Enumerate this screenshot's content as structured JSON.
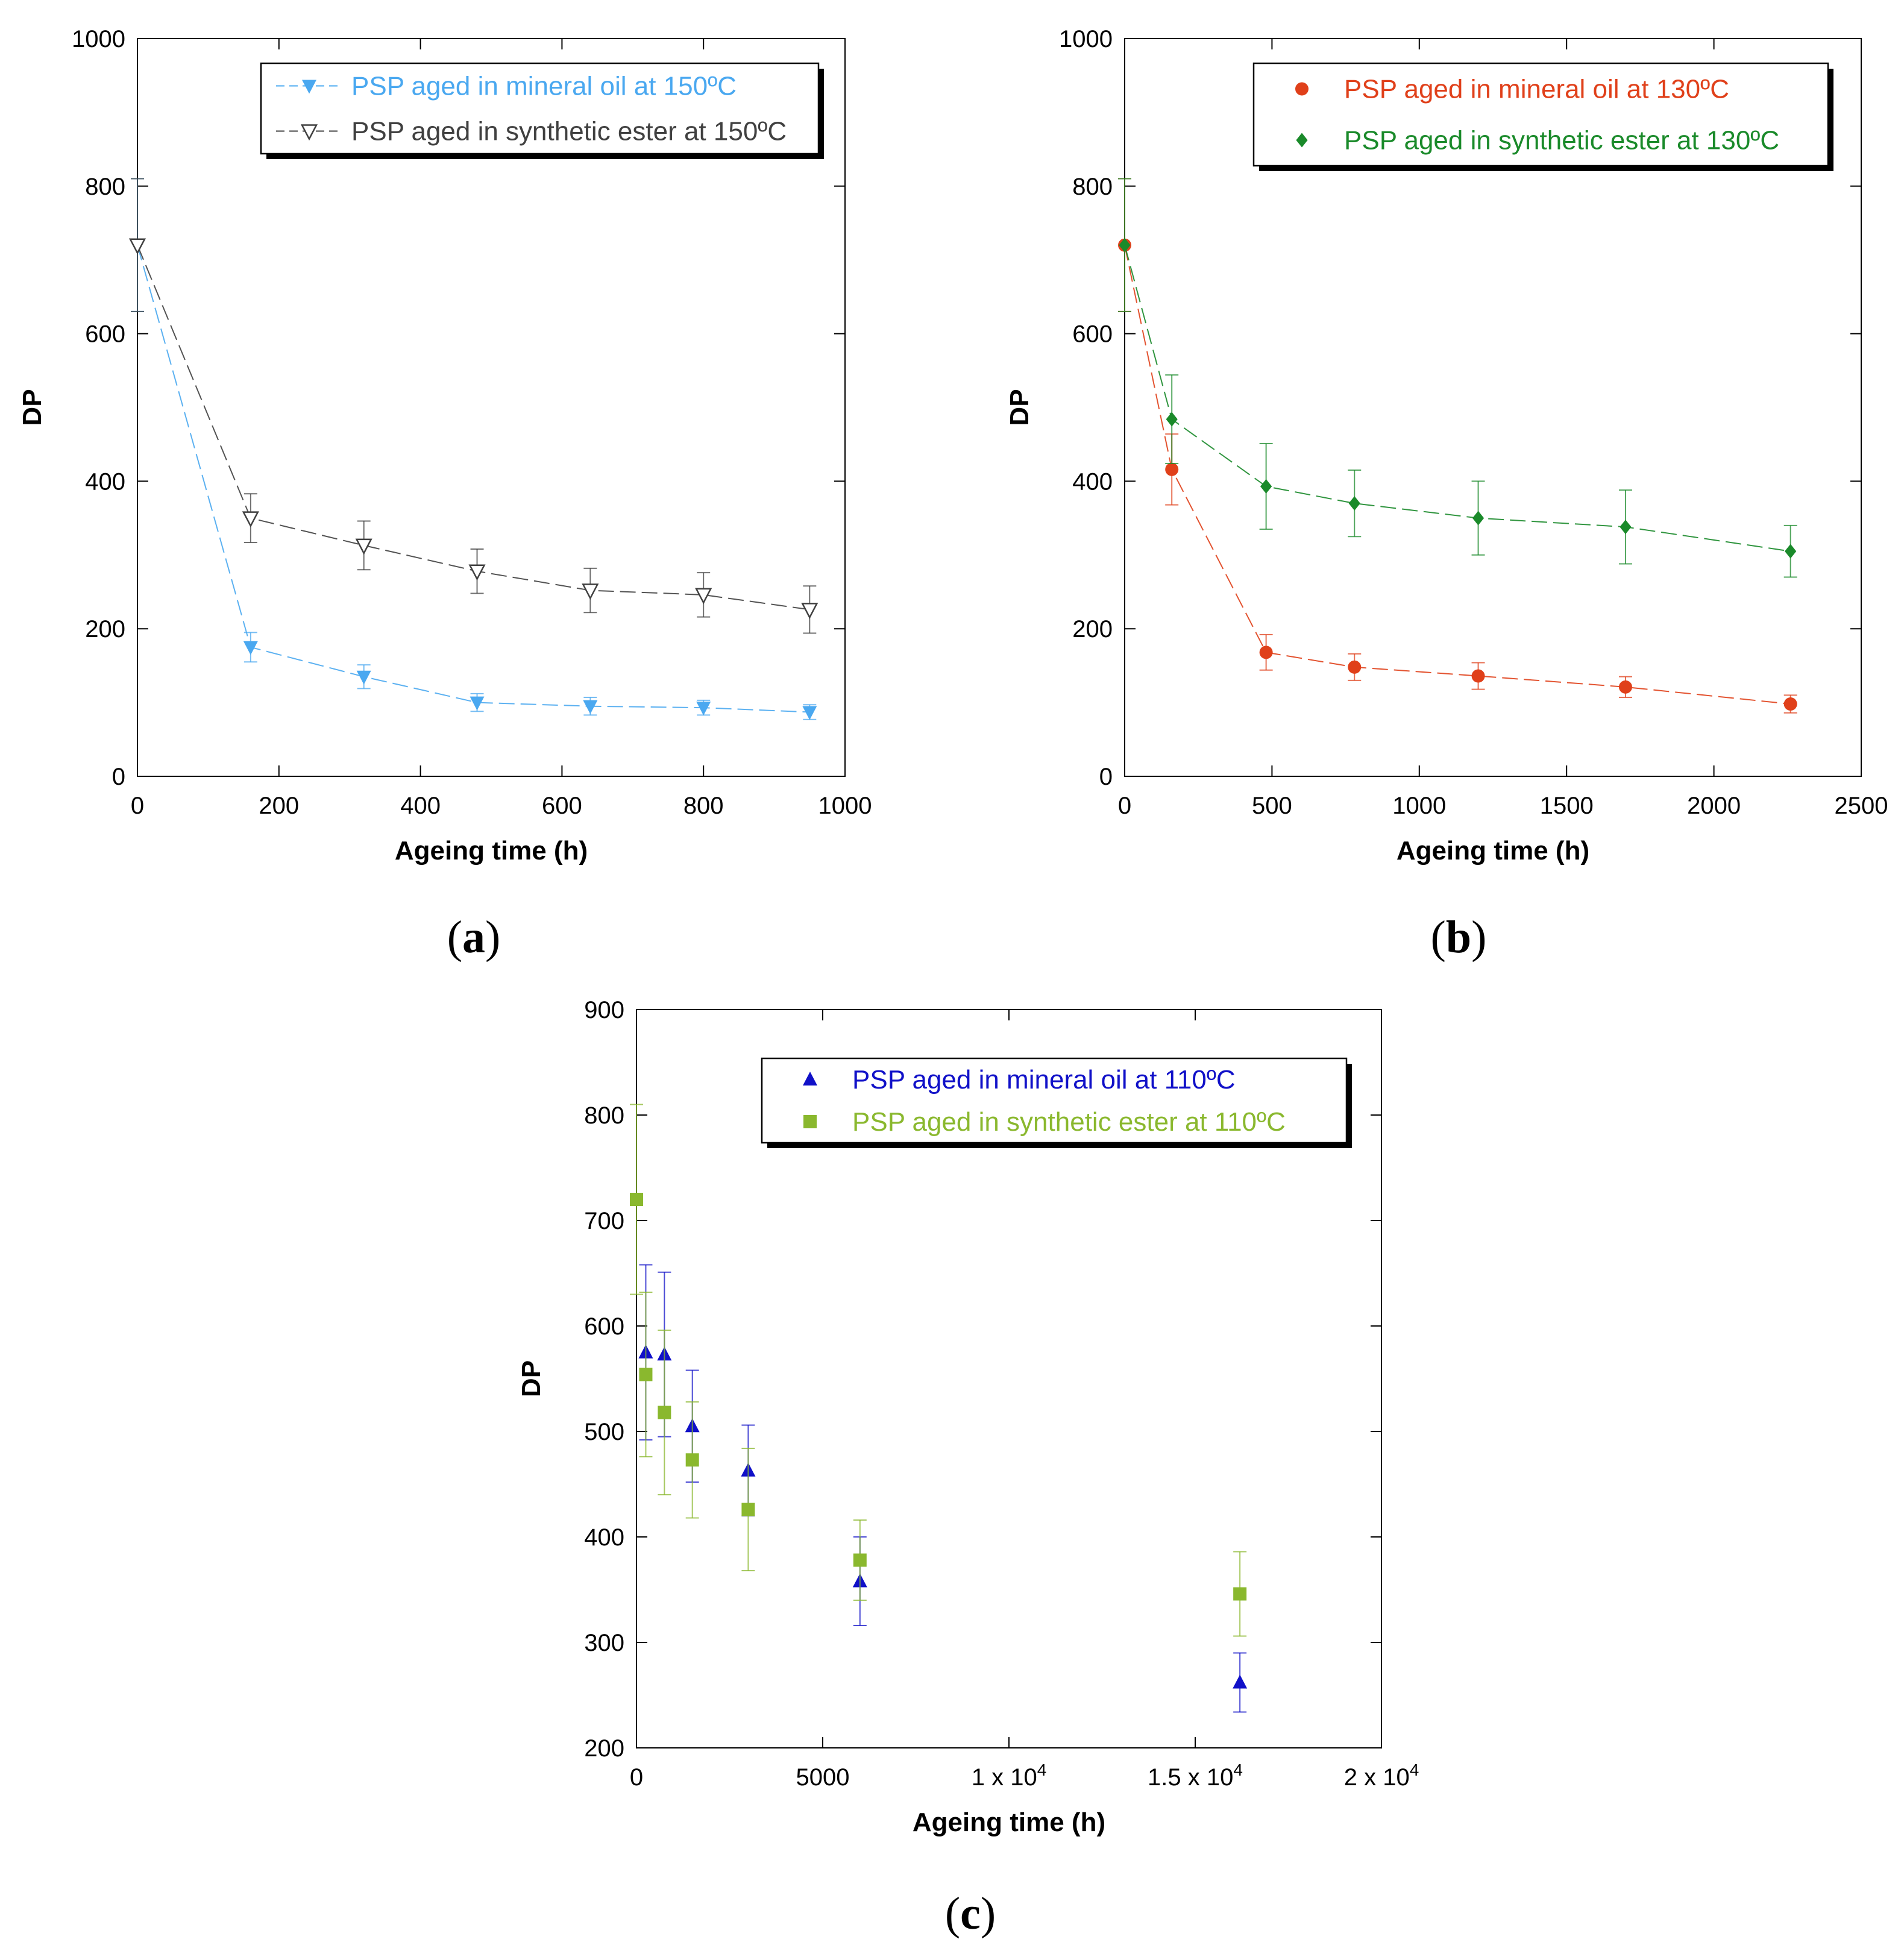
{
  "figure": {
    "panels": [
      {
        "label": "a"
      },
      {
        "label": "b"
      },
      {
        "label": "c"
      }
    ]
  },
  "chart_data": [
    {
      "type": "line",
      "panel": "a",
      "xlabel": "Ageing time (h)",
      "ylabel": "DP",
      "xlim": [
        0,
        1000
      ],
      "ylim": [
        0,
        1000
      ],
      "xticks": [
        0,
        200,
        400,
        600,
        800,
        1000
      ],
      "xtick_labels": [
        "0",
        "200",
        "400",
        "600",
        "800",
        "1000"
      ],
      "yticks": [
        0,
        200,
        400,
        600,
        800,
        1000
      ],
      "ytick_labels": [
        "0",
        "200",
        "400",
        "600",
        "800",
        "1000"
      ],
      "legend_position": "top-right",
      "series": [
        {
          "name": "PSP aged in mineral oil at 150ºC",
          "color": "#4aa8f0",
          "marker": "triangle-down-filled",
          "x": [
            0,
            160,
            320,
            480,
            640,
            800,
            950
          ],
          "y": [
            720,
            175,
            135,
            100,
            95,
            93,
            87
          ],
          "err": [
            90,
            20,
            16,
            12,
            12,
            10,
            10
          ]
        },
        {
          "name": "PSP aged in synthetic ester at 150ºC",
          "color": "#404040",
          "marker": "triangle-down-open",
          "x": [
            0,
            160,
            320,
            480,
            640,
            800,
            950
          ],
          "y": [
            720,
            350,
            313,
            278,
            252,
            246,
            226
          ],
          "err": [
            90,
            33,
            33,
            30,
            30,
            30,
            32
          ]
        }
      ]
    },
    {
      "type": "line",
      "panel": "b",
      "xlabel": "Ageing time (h)",
      "ylabel": "DP",
      "xlim": [
        0,
        2500
      ],
      "ylim": [
        0,
        1000
      ],
      "xticks": [
        0,
        500,
        1000,
        1500,
        2000,
        2500
      ],
      "xtick_labels": [
        "0",
        "500",
        "1000",
        "1500",
        "2000",
        "2500"
      ],
      "yticks": [
        0,
        200,
        400,
        600,
        800,
        1000
      ],
      "ytick_labels": [
        "0",
        "200",
        "400",
        "600",
        "800",
        "1000"
      ],
      "legend_position": "top-right",
      "series": [
        {
          "name": "PSP aged in mineral oil at 130ºC",
          "color": "#e0401a",
          "marker": "circle",
          "x": [
            0,
            160,
            480,
            780,
            1200,
            1700,
            2260
          ],
          "y": [
            720,
            416,
            168,
            148,
            136,
            121,
            98
          ],
          "err": [
            90,
            48,
            24,
            18,
            18,
            14,
            12
          ]
        },
        {
          "name": "PSP aged in synthetic ester at 130ºC",
          "color": "#1a8a2a",
          "marker": "diamond",
          "x": [
            0,
            160,
            480,
            780,
            1200,
            1700,
            2260
          ],
          "y": [
            720,
            484,
            393,
            370,
            350,
            338,
            305
          ],
          "err": [
            90,
            60,
            58,
            45,
            50,
            50,
            35
          ]
        }
      ]
    },
    {
      "type": "scatter",
      "panel": "c",
      "xlabel": "Ageing time (h)",
      "ylabel": "DP",
      "xlim": [
        0,
        20000
      ],
      "ylim": [
        200,
        900
      ],
      "xticks": [
        0,
        5000,
        10000,
        15000,
        20000
      ],
      "xtick_labels": [
        "0",
        "5000",
        "1 x 10",
        "1.5 x 10",
        "2 x 10"
      ],
      "xtick_exponents": [
        "",
        "",
        "4",
        "4",
        "4"
      ],
      "yticks": [
        200,
        300,
        400,
        500,
        600,
        700,
        800,
        900
      ],
      "ytick_labels": [
        "200",
        "300",
        "400",
        "500",
        "600",
        "700",
        "800",
        "900"
      ],
      "legend_position": "top-right",
      "series": [
        {
          "name": "PSP aged in mineral oil at 110ºC",
          "color": "#1010c8",
          "marker": "triangle-up",
          "x": [
            250,
            750,
            1500,
            3000,
            6000,
            16200
          ],
          "y": [
            575,
            573,
            505,
            463,
            358,
            262
          ],
          "err": [
            83,
            78,
            53,
            43,
            42,
            28
          ]
        },
        {
          "name": "PSP aged in synthetic ester at 110ºC",
          "color": "#8ab82e",
          "marker": "square",
          "x": [
            0,
            250,
            750,
            1500,
            3000,
            6000,
            16200
          ],
          "y": [
            720,
            554,
            518,
            473,
            426,
            378,
            346
          ],
          "err": [
            90,
            78,
            78,
            55,
            58,
            38,
            40
          ]
        }
      ]
    }
  ]
}
